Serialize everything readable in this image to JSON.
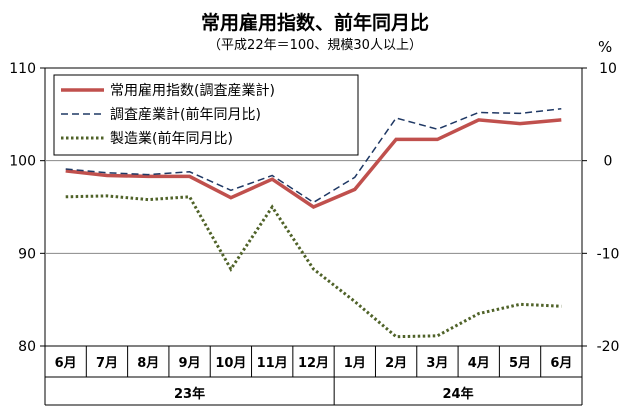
{
  "title": "常用雇用指数、前年同月比",
  "subtitle": "（平成22年＝100、規模30人以上）",
  "right_unit": "%",
  "chart_data": {
    "type": "line",
    "categories": [
      "6月",
      "7月",
      "8月",
      "9月",
      "10月",
      "11月",
      "12月",
      "1月",
      "2月",
      "3月",
      "4月",
      "5月",
      "6月"
    ],
    "year_groups": [
      {
        "label": "23年",
        "start": 0,
        "end": 6
      },
      {
        "label": "24年",
        "start": 7,
        "end": 12
      }
    ],
    "left_axis": {
      "ylim": [
        80,
        110
      ],
      "ticks": [
        80,
        90,
        100,
        110
      ]
    },
    "right_axis": {
      "ylim": [
        -20,
        10
      ],
      "ticks": [
        -20,
        -10,
        0,
        10
      ]
    },
    "grid": true,
    "legend_position": "top-left",
    "series": [
      {
        "name": "常用雇用指数(調査産業計)",
        "axis": "left",
        "color": "#c0504d",
        "style": "solid",
        "values": [
          98.9,
          98.4,
          98.3,
          98.3,
          96.0,
          98.0,
          95.0,
          96.9,
          102.3,
          102.3,
          104.4,
          104.0,
          104.4
        ]
      },
      {
        "name": "調査産業計(前年同月比)",
        "axis": "right",
        "color": "#1f3864",
        "style": "dashed",
        "values": [
          -0.9,
          -1.3,
          -1.5,
          -1.2,
          -3.2,
          -1.6,
          -4.5,
          -1.8,
          4.6,
          3.4,
          5.2,
          5.1,
          5.6
        ]
      },
      {
        "name": "製造業(前年同月比)",
        "axis": "right",
        "color": "#4f6228",
        "style": "dotted",
        "values": [
          -3.9,
          -3.8,
          -4.2,
          -3.9,
          -11.7,
          -5.0,
          -11.7,
          -15.2,
          -19.0,
          -18.9,
          -16.5,
          -15.5,
          -15.7
        ]
      }
    ]
  }
}
